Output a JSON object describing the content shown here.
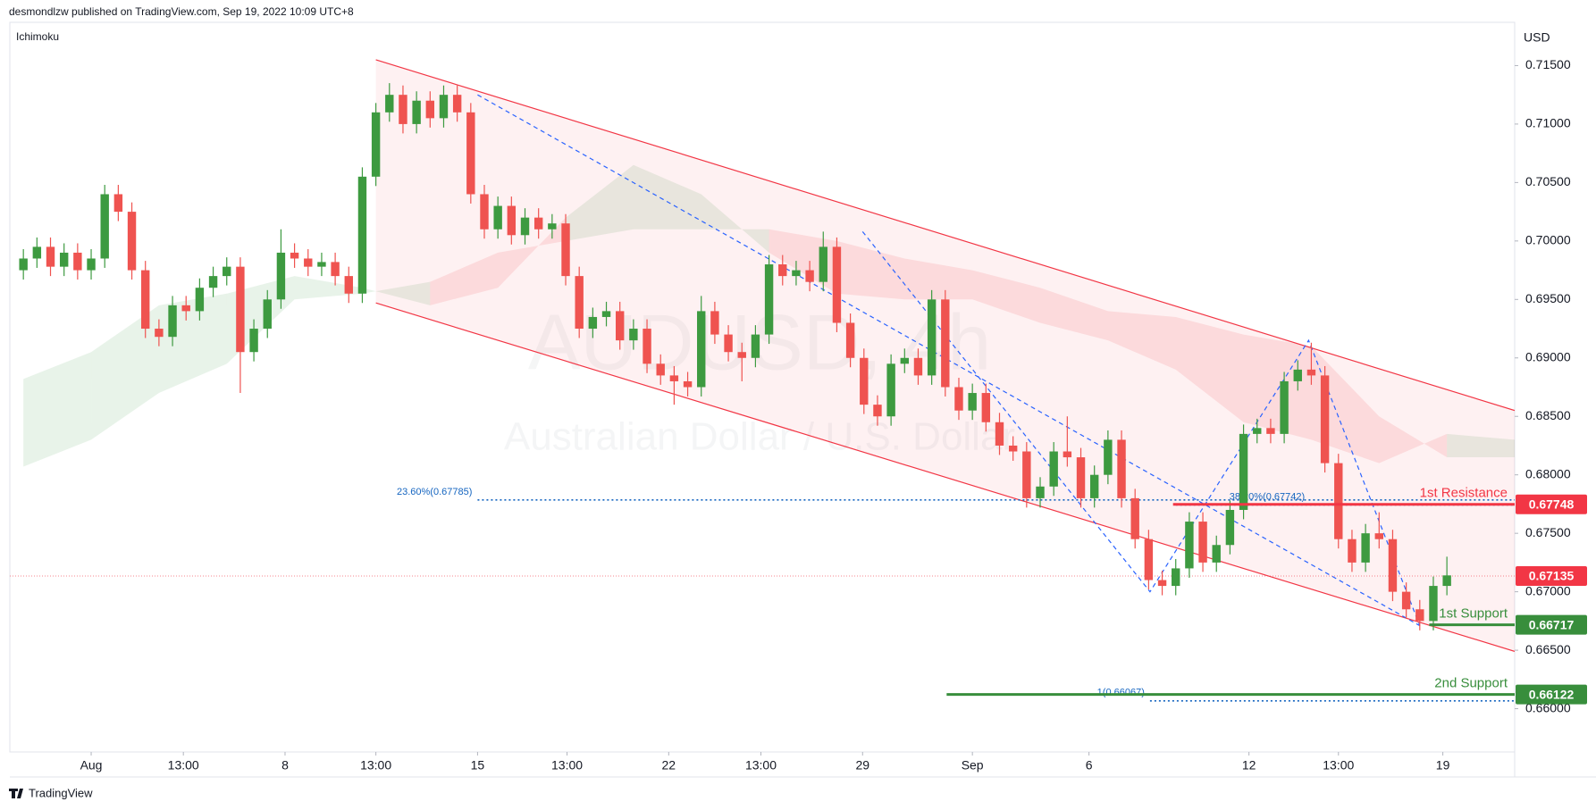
{
  "header": "desmondlzw published on TradingView.com, Sep 19, 2022 10:09 UTC+8",
  "footer": "TradingView",
  "chart_data": {
    "type": "candlestick",
    "indicator": "Ichimoku",
    "currency": "USD",
    "watermark": "AUDUSD, 4h",
    "watermark_subtitle": "Australian Dollar / U.S. Dollar",
    "up_color": "#3d9a40",
    "down_color": "#ef5350",
    "x": [
      0,
      1,
      2,
      3,
      4,
      5,
      6,
      7,
      8,
      9,
      10,
      11,
      12,
      13,
      14,
      15,
      16,
      17,
      18,
      19,
      20,
      21,
      22,
      23,
      24,
      25,
      26,
      27,
      28,
      29,
      30,
      31,
      32,
      33,
      34,
      35,
      36,
      37,
      38,
      39,
      40,
      41,
      42,
      43,
      44,
      45,
      46,
      47,
      48,
      49,
      50,
      51,
      52,
      53,
      54,
      55,
      56,
      57,
      58,
      59,
      60,
      61,
      62,
      63,
      64,
      65,
      66,
      67,
      68,
      69,
      70,
      71,
      72,
      73,
      74,
      75,
      76,
      77,
      78,
      79,
      80,
      81,
      82,
      83,
      84,
      85,
      86,
      87,
      88,
      89,
      90,
      91,
      92,
      93,
      94,
      95,
      96,
      97,
      98,
      99,
      100,
      101,
      102,
      103,
      104,
      105
    ],
    "ohlc": [
      [
        0.6975,
        0.6993,
        0.6967,
        0.6985
      ],
      [
        0.6985,
        0.7003,
        0.6977,
        0.6995
      ],
      [
        0.6995,
        0.7003,
        0.697,
        0.6978
      ],
      [
        0.6978,
        0.6998,
        0.697,
        0.699
      ],
      [
        0.699,
        0.6998,
        0.6967,
        0.6975
      ],
      [
        0.6975,
        0.6993,
        0.6967,
        0.6985
      ],
      [
        0.6985,
        0.7048,
        0.6977,
        0.704
      ],
      [
        0.704,
        0.7048,
        0.7017,
        0.7025
      ],
      [
        0.7025,
        0.7033,
        0.6967,
        0.6975
      ],
      [
        0.6975,
        0.6983,
        0.6917,
        0.6925
      ],
      [
        0.6925,
        0.6933,
        0.691,
        0.6918
      ],
      [
        0.6918,
        0.6953,
        0.691,
        0.6945
      ],
      [
        0.6945,
        0.6953,
        0.6932,
        0.694
      ],
      [
        0.694,
        0.6968,
        0.6932,
        0.696
      ],
      [
        0.696,
        0.6978,
        0.6952,
        0.697
      ],
      [
        0.697,
        0.6986,
        0.6962,
        0.6978
      ],
      [
        0.6978,
        0.6986,
        0.687,
        0.6905
      ],
      [
        0.6905,
        0.6933,
        0.6897,
        0.6925
      ],
      [
        0.6925,
        0.6958,
        0.6917,
        0.695
      ],
      [
        0.695,
        0.701,
        0.6942,
        0.699
      ],
      [
        0.699,
        0.6998,
        0.6977,
        0.6985
      ],
      [
        0.6985,
        0.6993,
        0.697,
        0.6978
      ],
      [
        0.6978,
        0.699,
        0.697,
        0.6982
      ],
      [
        0.6982,
        0.699,
        0.6962,
        0.697
      ],
      [
        0.697,
        0.6978,
        0.6947,
        0.6955
      ],
      [
        0.6955,
        0.7063,
        0.6947,
        0.7055
      ],
      [
        0.7055,
        0.7118,
        0.7047,
        0.711
      ],
      [
        0.711,
        0.7135,
        0.7102,
        0.7125
      ],
      [
        0.7125,
        0.7133,
        0.7092,
        0.71
      ],
      [
        0.71,
        0.7128,
        0.7092,
        0.712
      ],
      [
        0.712,
        0.7128,
        0.7097,
        0.7105
      ],
      [
        0.7105,
        0.7133,
        0.7097,
        0.7125
      ],
      [
        0.7125,
        0.7133,
        0.7102,
        0.711
      ],
      [
        0.711,
        0.7118,
        0.7032,
        0.704
      ],
      [
        0.704,
        0.7048,
        0.7002,
        0.701
      ],
      [
        0.701,
        0.7038,
        0.7002,
        0.703
      ],
      [
        0.703,
        0.7038,
        0.6997,
        0.7005
      ],
      [
        0.7005,
        0.7028,
        0.6997,
        0.702
      ],
      [
        0.702,
        0.7028,
        0.7002,
        0.701
      ],
      [
        0.701,
        0.7023,
        0.7002,
        0.7015
      ],
      [
        0.7015,
        0.7023,
        0.6962,
        0.697
      ],
      [
        0.697,
        0.6978,
        0.6917,
        0.6925
      ],
      [
        0.6925,
        0.6943,
        0.6917,
        0.6935
      ],
      [
        0.6935,
        0.6948,
        0.6927,
        0.694
      ],
      [
        0.694,
        0.6948,
        0.6907,
        0.6915
      ],
      [
        0.6915,
        0.6933,
        0.6907,
        0.6925
      ],
      [
        0.6925,
        0.6933,
        0.6887,
        0.6895
      ],
      [
        0.6895,
        0.6903,
        0.6877,
        0.6885
      ],
      [
        0.6885,
        0.6893,
        0.686,
        0.688
      ],
      [
        0.688,
        0.6888,
        0.6867,
        0.6875
      ],
      [
        0.6875,
        0.6953,
        0.6867,
        0.694
      ],
      [
        0.694,
        0.6948,
        0.6912,
        0.692
      ],
      [
        0.692,
        0.6928,
        0.6897,
        0.6905
      ],
      [
        0.6905,
        0.6913,
        0.688,
        0.69
      ],
      [
        0.69,
        0.6928,
        0.6892,
        0.692
      ],
      [
        0.692,
        0.6988,
        0.6912,
        0.698
      ],
      [
        0.698,
        0.6988,
        0.6962,
        0.697
      ],
      [
        0.697,
        0.6983,
        0.6962,
        0.6975
      ],
      [
        0.6975,
        0.6983,
        0.6957,
        0.6965
      ],
      [
        0.6965,
        0.7008,
        0.6957,
        0.6995
      ],
      [
        0.6995,
        0.7003,
        0.6922,
        0.693
      ],
      [
        0.693,
        0.6938,
        0.6892,
        0.69
      ],
      [
        0.69,
        0.6908,
        0.6852,
        0.686
      ],
      [
        0.686,
        0.6868,
        0.6842,
        0.685
      ],
      [
        0.685,
        0.6903,
        0.6842,
        0.6895
      ],
      [
        0.6895,
        0.6908,
        0.6887,
        0.69
      ],
      [
        0.69,
        0.6908,
        0.6877,
        0.6885
      ],
      [
        0.6885,
        0.6958,
        0.6877,
        0.695
      ],
      [
        0.695,
        0.6958,
        0.6867,
        0.6875
      ],
      [
        0.6875,
        0.6883,
        0.6847,
        0.6855
      ],
      [
        0.6855,
        0.6878,
        0.6847,
        0.687
      ],
      [
        0.687,
        0.6878,
        0.6837,
        0.6845
      ],
      [
        0.6845,
        0.6853,
        0.6817,
        0.6825
      ],
      [
        0.6825,
        0.6833,
        0.6812,
        0.682
      ],
      [
        0.682,
        0.6828,
        0.6772,
        0.678
      ],
      [
        0.678,
        0.6798,
        0.6772,
        0.679
      ],
      [
        0.679,
        0.6828,
        0.6782,
        0.682
      ],
      [
        0.682,
        0.685,
        0.6807,
        0.6815
      ],
      [
        0.6815,
        0.6823,
        0.6772,
        0.678
      ],
      [
        0.678,
        0.6808,
        0.6772,
        0.68
      ],
      [
        0.68,
        0.6838,
        0.6792,
        0.683
      ],
      [
        0.683,
        0.6838,
        0.6772,
        0.678
      ],
      [
        0.678,
        0.6788,
        0.6737,
        0.6745
      ],
      [
        0.6745,
        0.6753,
        0.6702,
        0.671
      ],
      [
        0.671,
        0.6718,
        0.6697,
        0.6705
      ],
      [
        0.6705,
        0.6728,
        0.6697,
        0.672
      ],
      [
        0.672,
        0.6768,
        0.6712,
        0.676
      ],
      [
        0.676,
        0.6768,
        0.6717,
        0.6725
      ],
      [
        0.6725,
        0.6748,
        0.6717,
        0.674
      ],
      [
        0.674,
        0.6778,
        0.6732,
        0.677
      ],
      [
        0.677,
        0.6843,
        0.6762,
        0.6835
      ],
      [
        0.6835,
        0.6848,
        0.6827,
        0.684
      ],
      [
        0.684,
        0.6848,
        0.6827,
        0.6835
      ],
      [
        0.6835,
        0.6888,
        0.6827,
        0.688
      ],
      [
        0.688,
        0.6898,
        0.6872,
        0.689
      ],
      [
        0.689,
        0.6913,
        0.6877,
        0.6885
      ],
      [
        0.6885,
        0.6893,
        0.6802,
        0.681
      ],
      [
        0.681,
        0.6818,
        0.6737,
        0.6745
      ],
      [
        0.6745,
        0.6753,
        0.6717,
        0.6725
      ],
      [
        0.6725,
        0.6758,
        0.6717,
        0.675
      ],
      [
        0.675,
        0.6768,
        0.6737,
        0.6745
      ],
      [
        0.6745,
        0.6753,
        0.6692,
        0.67
      ],
      [
        0.67,
        0.6708,
        0.6677,
        0.6685
      ],
      [
        0.6685,
        0.6693,
        0.6667,
        0.6675
      ],
      [
        0.6675,
        0.6713,
        0.6667,
        0.6705
      ],
      [
        0.6705,
        0.673,
        0.6697,
        0.6714
      ]
    ],
    "xlim": [
      -1,
      110
    ],
    "xticks": [
      {
        "value": 5.0,
        "label": "Aug"
      },
      {
        "value": 11.8,
        "label": "13:00"
      },
      {
        "value": 19.3,
        "label": "8"
      },
      {
        "value": 26.0,
        "label": "13:00"
      },
      {
        "value": 33.5,
        "label": "15"
      },
      {
        "value": 40.1,
        "label": "13:00"
      },
      {
        "value": 47.6,
        "label": "22"
      },
      {
        "value": 54.4,
        "label": "13:00"
      },
      {
        "value": 61.9,
        "label": "29"
      },
      {
        "value": 70.0,
        "label": "Sep"
      },
      {
        "value": 78.6,
        "label": "6"
      },
      {
        "value": 90.4,
        "label": "12"
      },
      {
        "value": 97.0,
        "label": "13:00"
      },
      {
        "value": 104.7,
        "label": "19"
      }
    ],
    "ylim": [
      0.6563,
      0.7187
    ],
    "yticks": [
      {
        "value": 0.66,
        "label": "0.66000"
      },
      {
        "value": 0.665,
        "label": "0.66500"
      },
      {
        "value": 0.67,
        "label": "0.67000"
      },
      {
        "value": 0.675,
        "label": "0.67500"
      },
      {
        "value": 0.68,
        "label": "0.68000"
      },
      {
        "value": 0.685,
        "label": "0.68500"
      },
      {
        "value": 0.69,
        "label": "0.69000"
      },
      {
        "value": 0.695,
        "label": "0.69500"
      },
      {
        "value": 0.7,
        "label": "0.70000"
      },
      {
        "value": 0.705,
        "label": "0.70500"
      },
      {
        "value": 0.71,
        "label": "0.71000"
      },
      {
        "value": 0.715,
        "label": "0.71500"
      }
    ],
    "grid": false,
    "cloud": {
      "x": [
        0,
        5,
        10,
        15,
        20,
        25,
        30,
        35,
        40,
        45,
        50,
        55,
        60,
        65,
        70,
        75,
        80,
        85,
        90,
        95,
        100,
        105,
        110
      ],
      "span_a": [
        0.6882,
        0.6905,
        0.6945,
        0.6955,
        0.697,
        0.696,
        0.6945,
        0.696,
        0.702,
        0.7065,
        0.704,
        0.699,
        0.6955,
        0.695,
        0.695,
        0.693,
        0.6915,
        0.689,
        0.6845,
        0.683,
        0.681,
        0.6835,
        0.683
      ],
      "span_b": [
        0.6807,
        0.683,
        0.687,
        0.6895,
        0.695,
        0.6955,
        0.6965,
        0.699,
        0.7,
        0.701,
        0.701,
        0.701,
        0.7,
        0.6985,
        0.6975,
        0.696,
        0.694,
        0.6935,
        0.692,
        0.691,
        0.685,
        0.6815,
        0.6815
      ],
      "up_color": "#43a047",
      "down_color": "#f23645"
    },
    "channel": {
      "x": [
        26,
        110
      ],
      "upper": [
        0.7155,
        0.6855
      ],
      "lower": [
        0.6947,
        0.6649
      ],
      "color": "#f23645"
    },
    "trend_lines": [
      {
        "x": [
          33.5,
          103.0
        ],
        "y": [
          0.7125,
          0.6671
        ]
      },
      {
        "x": [
          61.9,
          83.1,
          94.8,
          103.0
        ],
        "y": [
          0.7008,
          0.67,
          0.6915,
          0.6671
        ]
      }
    ],
    "trend_color": "#2962ff",
    "levels": [
      {
        "name": "1st Resistance",
        "value": 0.67748,
        "start": 84.8,
        "color": "#f23645"
      },
      {
        "name": "1st Support",
        "value": 0.66717,
        "start": 103.7,
        "color": "#388e3c"
      },
      {
        "name": "2nd Support",
        "value": 0.66122,
        "start": 68.1,
        "color": "#388e3c"
      }
    ],
    "last_price": {
      "value": 0.67135,
      "color": "#f23645"
    },
    "fib_color": "#1565c0",
    "fib_levels": [
      {
        "label": "23.60%(0.67785)",
        "value": 0.67785,
        "start": 33.5
      },
      {
        "label": "38.20%(0.67742)",
        "value": 0.67742,
        "start": 85.0
      },
      {
        "label": "1(0.66067)",
        "value": 0.66067,
        "start": 83.1
      }
    ]
  }
}
